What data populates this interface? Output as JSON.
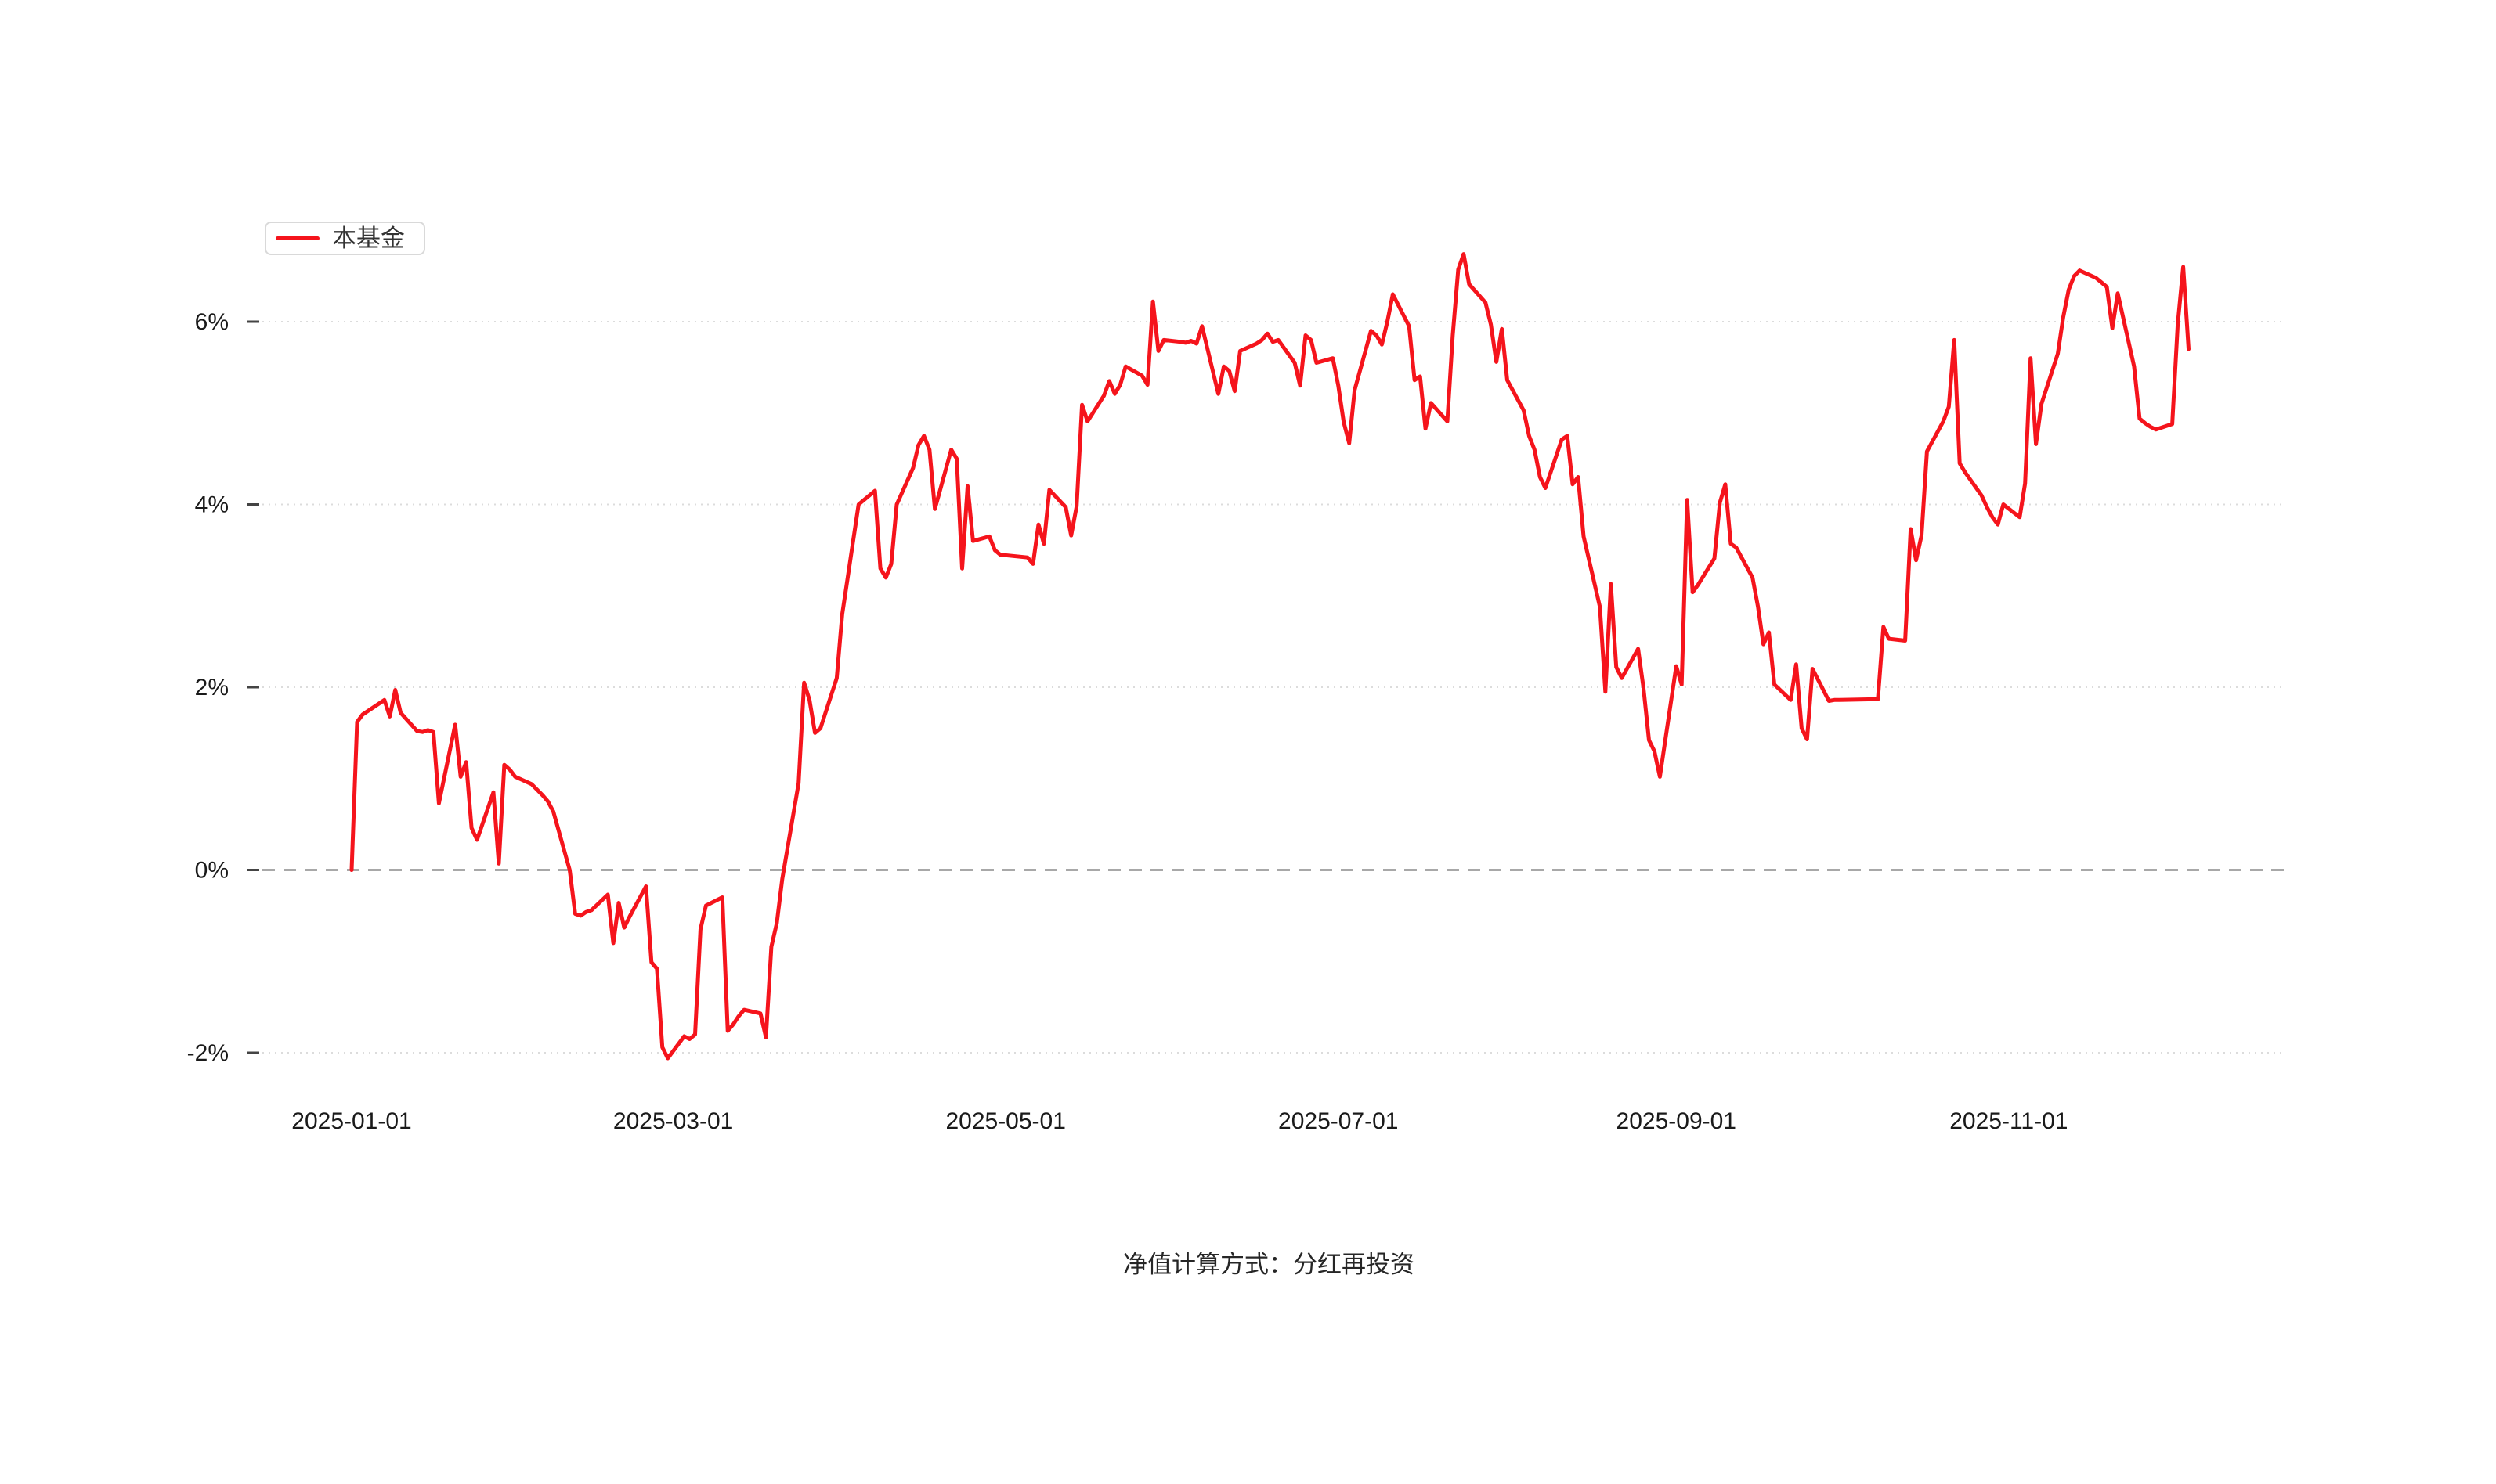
{
  "legend": {
    "label": "本基金"
  },
  "footer": {
    "text": "净值计算方式：分红再投资"
  },
  "colors": {
    "series_red": "#f5141c",
    "grid_dotted": "#dcdcdc",
    "zero_dashed": "#8c8c8c",
    "axis_text": "#1a1a1a",
    "tick_mark": "#444444",
    "legend_border": "#d9d9d9"
  },
  "chart_data": {
    "type": "line",
    "title": "",
    "xlabel": "",
    "ylabel": "",
    "legend_position": "top-left",
    "grid": "horizontal-dotted",
    "zero_line": "dashed",
    "ylim": [
      -2.8,
      7.2
    ],
    "y_axis": {
      "unit": "%",
      "ticks": [
        {
          "value": 6,
          "label": "6%"
        },
        {
          "value": 4,
          "label": "4%"
        },
        {
          "value": 2,
          "label": "2%"
        },
        {
          "value": 0,
          "label": "0%"
        },
        {
          "value": -2,
          "label": "-2%"
        }
      ]
    },
    "x_axis": {
      "ticks": [
        {
          "date": "2025-01-01",
          "label": "2025-01-01"
        },
        {
          "date": "2025-03-01",
          "label": "2025-03-01"
        },
        {
          "date": "2025-05-01",
          "label": "2025-05-01"
        },
        {
          "date": "2025-07-01",
          "label": "2025-07-01"
        },
        {
          "date": "2025-09-01",
          "label": "2025-09-01"
        },
        {
          "date": "2025-11-01",
          "label": "2025-11-01"
        }
      ]
    },
    "series": [
      {
        "name": "本基金",
        "color": "#f5141c",
        "points": [
          [
            "2025-01-01",
            0.0
          ],
          [
            "2025-01-02",
            1.62
          ],
          [
            "2025-01-03",
            1.7
          ],
          [
            "2025-01-06",
            1.82
          ],
          [
            "2025-01-07",
            1.86
          ],
          [
            "2025-01-08",
            1.68
          ],
          [
            "2025-01-09",
            1.97
          ],
          [
            "2025-01-10",
            1.72
          ],
          [
            "2025-01-13",
            1.52
          ],
          [
            "2025-01-14",
            1.51
          ],
          [
            "2025-01-15",
            1.53
          ],
          [
            "2025-01-16",
            1.51
          ],
          [
            "2025-01-17",
            0.73
          ],
          [
            "2025-01-20",
            1.59
          ],
          [
            "2025-01-21",
            1.02
          ],
          [
            "2025-01-22",
            1.18
          ],
          [
            "2025-01-23",
            0.46
          ],
          [
            "2025-01-24",
            0.33
          ],
          [
            "2025-01-27",
            0.85
          ],
          [
            "2025-01-28",
            0.07
          ],
          [
            "2025-01-29",
            1.15
          ],
          [
            "2025-01-30",
            1.1
          ],
          [
            "2025-01-31",
            1.02
          ],
          [
            "2025-02-03",
            0.94
          ],
          [
            "2025-02-04",
            0.88
          ],
          [
            "2025-02-05",
            0.82
          ],
          [
            "2025-02-06",
            0.75
          ],
          [
            "2025-02-07",
            0.64
          ],
          [
            "2025-02-10",
            0.0
          ],
          [
            "2025-02-11",
            -0.48
          ],
          [
            "2025-02-12",
            -0.5
          ],
          [
            "2025-02-13",
            -0.46
          ],
          [
            "2025-02-14",
            -0.44
          ],
          [
            "2025-02-17",
            -0.27
          ],
          [
            "2025-02-18",
            -0.8
          ],
          [
            "2025-02-19",
            -0.36
          ],
          [
            "2025-02-20",
            -0.63
          ],
          [
            "2025-02-21",
            -0.51
          ],
          [
            "2025-02-24",
            -0.18
          ],
          [
            "2025-02-25",
            -1.01
          ],
          [
            "2025-02-26",
            -1.08
          ],
          [
            "2025-02-27",
            -1.94
          ],
          [
            "2025-02-28",
            -2.06
          ],
          [
            "2025-03-03",
            -1.82
          ],
          [
            "2025-03-04",
            -1.85
          ],
          [
            "2025-03-05",
            -1.8
          ],
          [
            "2025-03-06",
            -0.65
          ],
          [
            "2025-03-07",
            -0.39
          ],
          [
            "2025-03-10",
            -0.3
          ],
          [
            "2025-03-11",
            -1.76
          ],
          [
            "2025-03-12",
            -1.69
          ],
          [
            "2025-03-13",
            -1.6
          ],
          [
            "2025-03-14",
            -1.53
          ],
          [
            "2025-03-17",
            -1.57
          ],
          [
            "2025-03-18",
            -1.83
          ],
          [
            "2025-03-19",
            -0.84
          ],
          [
            "2025-03-20",
            -0.58
          ],
          [
            "2025-03-21",
            -0.1
          ],
          [
            "2025-03-24",
            0.95
          ],
          [
            "2025-03-25",
            2.05
          ],
          [
            "2025-03-26",
            1.86
          ],
          [
            "2025-03-27",
            1.5
          ],
          [
            "2025-03-28",
            1.55
          ],
          [
            "2025-03-31",
            2.1
          ],
          [
            "2025-04-01",
            2.8
          ],
          [
            "2025-04-02",
            3.2
          ],
          [
            "2025-04-03",
            3.6
          ],
          [
            "2025-04-04",
            4.0
          ],
          [
            "2025-04-07",
            4.15
          ],
          [
            "2025-04-08",
            3.3
          ],
          [
            "2025-04-09",
            3.2
          ],
          [
            "2025-04-10",
            3.35
          ],
          [
            "2025-04-11",
            4.0
          ],
          [
            "2025-04-14",
            4.4
          ],
          [
            "2025-04-15",
            4.65
          ],
          [
            "2025-04-16",
            4.75
          ],
          [
            "2025-04-17",
            4.6
          ],
          [
            "2025-04-18",
            3.95
          ],
          [
            "2025-04-21",
            4.6
          ],
          [
            "2025-04-22",
            4.5
          ],
          [
            "2025-04-23",
            3.3
          ],
          [
            "2025-04-24",
            4.2
          ],
          [
            "2025-04-25",
            3.6
          ],
          [
            "2025-04-28",
            3.65
          ],
          [
            "2025-04-29",
            3.5
          ],
          [
            "2025-04-30",
            3.45
          ],
          [
            "2025-05-05",
            3.42
          ],
          [
            "2025-05-06",
            3.35
          ],
          [
            "2025-05-07",
            3.78
          ],
          [
            "2025-05-08",
            3.57
          ],
          [
            "2025-05-09",
            4.16
          ],
          [
            "2025-05-12",
            3.97
          ],
          [
            "2025-05-13",
            3.66
          ],
          [
            "2025-05-14",
            3.98
          ],
          [
            "2025-05-15",
            5.09
          ],
          [
            "2025-05-16",
            4.91
          ],
          [
            "2025-05-19",
            5.19
          ],
          [
            "2025-05-20",
            5.35
          ],
          [
            "2025-05-21",
            5.21
          ],
          [
            "2025-05-22",
            5.31
          ],
          [
            "2025-05-23",
            5.51
          ],
          [
            "2025-05-26",
            5.41
          ],
          [
            "2025-05-27",
            5.31
          ],
          [
            "2025-05-28",
            6.22
          ],
          [
            "2025-05-29",
            5.68
          ],
          [
            "2025-05-30",
            5.8
          ],
          [
            "2025-06-02",
            5.78
          ],
          [
            "2025-06-03",
            5.77
          ],
          [
            "2025-06-04",
            5.79
          ],
          [
            "2025-06-05",
            5.76
          ],
          [
            "2025-06-06",
            5.95
          ],
          [
            "2025-06-09",
            5.21
          ],
          [
            "2025-06-10",
            5.51
          ],
          [
            "2025-06-11",
            5.46
          ],
          [
            "2025-06-12",
            5.24
          ],
          [
            "2025-06-13",
            5.68
          ],
          [
            "2025-06-16",
            5.76
          ],
          [
            "2025-06-17",
            5.8
          ],
          [
            "2025-06-18",
            5.87
          ],
          [
            "2025-06-19",
            5.78
          ],
          [
            "2025-06-20",
            5.8
          ],
          [
            "2025-06-23",
            5.55
          ],
          [
            "2025-06-24",
            5.3
          ],
          [
            "2025-06-25",
            5.85
          ],
          [
            "2025-06-26",
            5.8
          ],
          [
            "2025-06-27",
            5.55
          ],
          [
            "2025-06-30",
            5.6
          ],
          [
            "2025-07-01",
            5.3
          ],
          [
            "2025-07-02",
            4.9
          ],
          [
            "2025-07-03",
            4.67
          ],
          [
            "2025-07-04",
            5.25
          ],
          [
            "2025-07-07",
            5.9
          ],
          [
            "2025-07-08",
            5.85
          ],
          [
            "2025-07-09",
            5.75
          ],
          [
            "2025-07-10",
            6.0
          ],
          [
            "2025-07-11",
            6.3
          ],
          [
            "2025-07-14",
            5.95
          ],
          [
            "2025-07-15",
            5.36
          ],
          [
            "2025-07-16",
            5.4
          ],
          [
            "2025-07-17",
            4.83
          ],
          [
            "2025-07-18",
            5.11
          ],
          [
            "2025-07-21",
            4.91
          ],
          [
            "2025-07-22",
            5.85
          ],
          [
            "2025-07-23",
            6.57
          ],
          [
            "2025-07-24",
            6.74
          ],
          [
            "2025-07-25",
            6.41
          ],
          [
            "2025-07-28",
            6.21
          ],
          [
            "2025-07-29",
            5.97
          ],
          [
            "2025-07-30",
            5.56
          ],
          [
            "2025-07-31",
            5.92
          ],
          [
            "2025-08-01",
            5.36
          ],
          [
            "2025-08-04",
            5.03
          ],
          [
            "2025-08-05",
            4.75
          ],
          [
            "2025-08-06",
            4.6
          ],
          [
            "2025-08-07",
            4.3
          ],
          [
            "2025-08-08",
            4.18
          ],
          [
            "2025-08-11",
            4.71
          ],
          [
            "2025-08-12",
            4.75
          ],
          [
            "2025-08-13",
            4.22
          ],
          [
            "2025-08-14",
            4.3
          ],
          [
            "2025-08-15",
            3.65
          ],
          [
            "2025-08-18",
            2.88
          ],
          [
            "2025-08-19",
            1.95
          ],
          [
            "2025-08-20",
            3.13
          ],
          [
            "2025-08-21",
            2.22
          ],
          [
            "2025-08-22",
            2.1
          ],
          [
            "2025-08-25",
            2.42
          ],
          [
            "2025-08-26",
            1.99
          ],
          [
            "2025-08-27",
            1.42
          ],
          [
            "2025-08-28",
            1.3
          ],
          [
            "2025-08-29",
            1.02
          ],
          [
            "2025-09-01",
            2.23
          ],
          [
            "2025-09-02",
            2.03
          ],
          [
            "2025-09-03",
            4.05
          ],
          [
            "2025-09-04",
            3.04
          ],
          [
            "2025-09-05",
            3.12
          ],
          [
            "2025-09-08",
            3.41
          ],
          [
            "2025-09-09",
            4.02
          ],
          [
            "2025-09-10",
            4.22
          ],
          [
            "2025-09-11",
            3.57
          ],
          [
            "2025-09-12",
            3.53
          ],
          [
            "2025-09-15",
            3.2
          ],
          [
            "2025-09-16",
            2.88
          ],
          [
            "2025-09-17",
            2.47
          ],
          [
            "2025-09-18",
            2.6
          ],
          [
            "2025-09-19",
            2.03
          ],
          [
            "2025-09-22",
            1.86
          ],
          [
            "2025-09-23",
            2.25
          ],
          [
            "2025-09-24",
            1.55
          ],
          [
            "2025-09-25",
            1.43
          ],
          [
            "2025-09-26",
            2.2
          ],
          [
            "2025-09-29",
            1.85
          ],
          [
            "2025-09-30",
            1.86
          ],
          [
            "2025-10-01",
            1.86
          ],
          [
            "2025-10-08",
            1.87
          ],
          [
            "2025-10-09",
            2.66
          ],
          [
            "2025-10-10",
            2.53
          ],
          [
            "2025-10-13",
            2.51
          ],
          [
            "2025-10-14",
            3.73
          ],
          [
            "2025-10-15",
            3.39
          ],
          [
            "2025-10-16",
            3.66
          ],
          [
            "2025-10-17",
            4.58
          ],
          [
            "2025-10-20",
            4.91
          ],
          [
            "2025-10-21",
            5.07
          ],
          [
            "2025-10-22",
            5.8
          ],
          [
            "2025-10-23",
            4.45
          ],
          [
            "2025-10-24",
            4.35
          ],
          [
            "2025-10-27",
            4.1
          ],
          [
            "2025-10-28",
            3.97
          ],
          [
            "2025-10-29",
            3.86
          ],
          [
            "2025-10-30",
            3.78
          ],
          [
            "2025-10-31",
            4.0
          ],
          [
            "2025-11-03",
            3.86
          ],
          [
            "2025-11-04",
            4.23
          ],
          [
            "2025-11-05",
            5.6
          ],
          [
            "2025-11-06",
            4.66
          ],
          [
            "2025-11-07",
            5.1
          ],
          [
            "2025-11-10",
            5.65
          ],
          [
            "2025-11-11",
            6.05
          ],
          [
            "2025-11-12",
            6.35
          ],
          [
            "2025-11-13",
            6.5
          ],
          [
            "2025-11-14",
            6.56
          ],
          [
            "2025-11-17",
            6.48
          ],
          [
            "2025-11-18",
            6.43
          ],
          [
            "2025-11-19",
            6.38
          ],
          [
            "2025-11-20",
            5.93
          ],
          [
            "2025-11-21",
            6.31
          ],
          [
            "2025-11-24",
            5.51
          ],
          [
            "2025-11-25",
            4.94
          ],
          [
            "2025-11-26",
            4.89
          ],
          [
            "2025-11-27",
            4.85
          ],
          [
            "2025-11-28",
            4.82
          ],
          [
            "2025-12-01",
            4.88
          ],
          [
            "2025-12-02",
            5.97
          ],
          [
            "2025-12-03",
            6.6
          ],
          [
            "2025-12-04",
            5.7
          ]
        ]
      }
    ]
  }
}
